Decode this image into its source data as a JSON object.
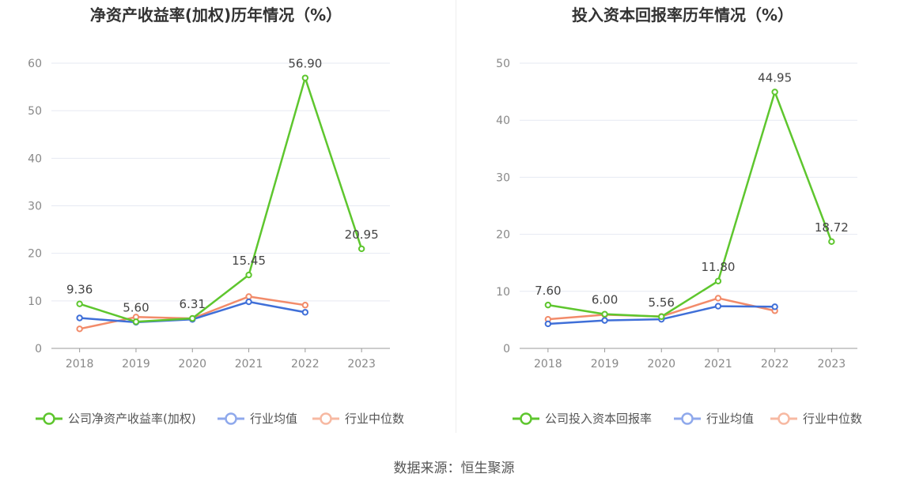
{
  "colors": {
    "company": "#5ec62e",
    "industry_avg": "#3f6fd8",
    "industry_median": "#f28b6a",
    "legend_avg": "#8fa9ec",
    "legend_median": "#f7b9a2",
    "grid": "#e6e9f2",
    "axis": "#999999",
    "tick_text": "#888888",
    "title": "#333333",
    "label": "#444444"
  },
  "source": "数据来源：恒生聚源",
  "chart_data": [
    {
      "type": "line",
      "title": "净资产收益率(加权)历年情况（%）",
      "categories": [
        "2018",
        "2019",
        "2020",
        "2021",
        "2022",
        "2023"
      ],
      "ylim": [
        0,
        60
      ],
      "yticks": [
        0,
        10,
        20,
        30,
        40,
        50,
        60
      ],
      "ytick_labels": [
        "0",
        "10",
        "20",
        "30",
        "40",
        "50",
        "60"
      ],
      "series": [
        {
          "key": "company",
          "name": "公司净资产收益率(加权)",
          "values": [
            9.36,
            5.6,
            6.31,
            15.45,
            56.9,
            20.95
          ],
          "labels": [
            "9.36",
            "5.60",
            "6.31",
            "15.45",
            "56.90",
            "20.95"
          ]
        },
        {
          "key": "industry_avg",
          "name": "行业均值",
          "values": [
            6.4,
            5.5,
            6.1,
            9.8,
            7.6,
            null
          ]
        },
        {
          "key": "industry_median",
          "name": "行业中位数",
          "values": [
            4.1,
            6.6,
            6.3,
            10.9,
            9.1,
            null
          ]
        }
      ]
    },
    {
      "type": "line",
      "title": "投入资本回报率历年情况（%）",
      "categories": [
        "2018",
        "2019",
        "2020",
        "2021",
        "2022",
        "2023"
      ],
      "ylim": [
        0,
        50
      ],
      "yticks": [
        0,
        10,
        20,
        30,
        40,
        50
      ],
      "ytick_labels": [
        "0",
        "10",
        "20",
        "30",
        "40",
        "50"
      ],
      "series": [
        {
          "key": "company",
          "name": "公司投入资本回报率",
          "values": [
            7.6,
            6.0,
            5.56,
            11.8,
            44.95,
            18.72
          ],
          "labels": [
            "7.60",
            "6.00",
            "5.56",
            "11.80",
            "44.95",
            "18.72"
          ]
        },
        {
          "key": "industry_avg",
          "name": "行业均值",
          "values": [
            4.3,
            4.9,
            5.1,
            7.4,
            7.3,
            null
          ]
        },
        {
          "key": "industry_median",
          "name": "行业中位数",
          "values": [
            5.1,
            5.9,
            5.6,
            8.8,
            6.6,
            null
          ]
        }
      ]
    }
  ]
}
